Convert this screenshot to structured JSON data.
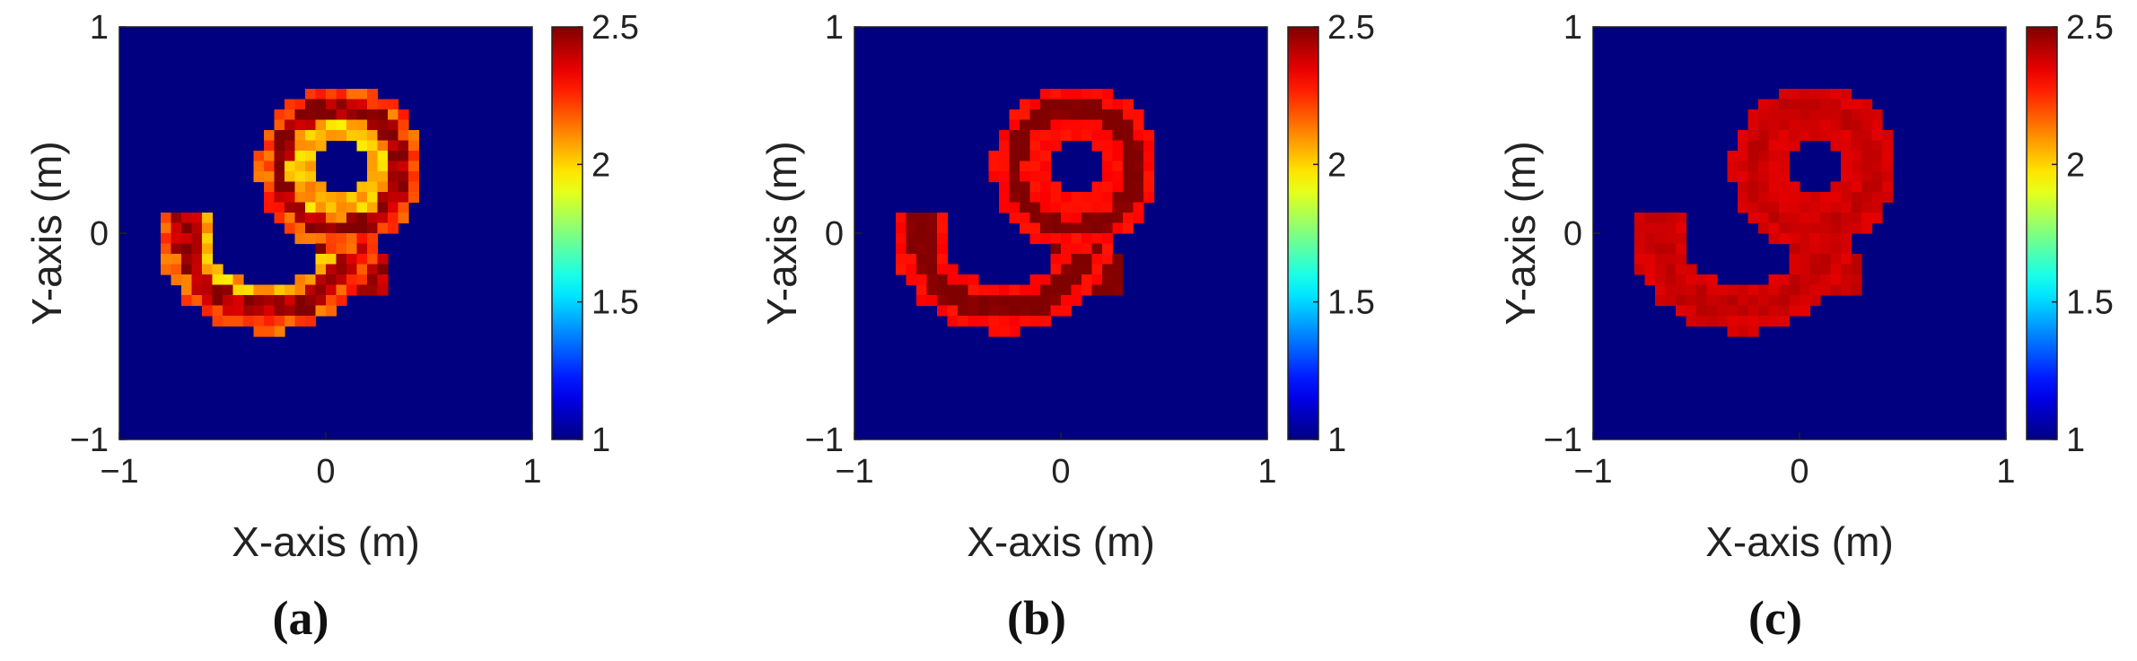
{
  "chart_data": [
    {
      "type": "heatmap",
      "label": "(a)",
      "xlabel": "X-axis (m)",
      "ylabel": "Y-axis (m)",
      "xlim": [
        -1,
        1
      ],
      "ylim": [
        -1,
        1
      ],
      "x_ticks": [
        "−1",
        "0",
        "1"
      ],
      "y_ticks": [
        "−1",
        "0",
        "1"
      ],
      "colorbar": {
        "range": [
          1,
          2.5
        ],
        "colormap": "jet",
        "ticks": [
          "1",
          "1.5",
          "2",
          "2.5"
        ]
      },
      "background_value": 1,
      "grid_size": 40,
      "shape": "digit-9 contour",
      "value_levels": {
        "outer_ring": 2.2,
        "inner_ring": 2.05,
        "body": 2.45
      },
      "max_value": 2.5
    },
    {
      "type": "heatmap",
      "label": "(b)",
      "xlabel": "X-axis (m)",
      "ylabel": "Y-axis (m)",
      "xlim": [
        -1,
        1
      ],
      "ylim": [
        -1,
        1
      ],
      "x_ticks": [
        "−1",
        "0",
        "1"
      ],
      "y_ticks": [
        "−1",
        "0",
        "1"
      ],
      "colorbar": {
        "range": [
          1,
          2.5
        ],
        "colormap": "jet",
        "ticks": [
          "1",
          "1.5",
          "2",
          "2.5"
        ]
      },
      "background_value": 1,
      "grid_size": 40,
      "shape": "digit-9 contour",
      "value_levels": {
        "outer_ring": 2.3,
        "inner_ring": 2.3,
        "body": 2.5
      },
      "max_value": 2.5
    },
    {
      "type": "heatmap",
      "label": "(c)",
      "xlabel": "X-axis (m)",
      "ylabel": "Y-axis (m)",
      "xlim": [
        -1,
        1
      ],
      "ylim": [
        -1,
        1
      ],
      "x_ticks": [
        "−1",
        "0",
        "1"
      ],
      "y_ticks": [
        "−1",
        "0",
        "1"
      ],
      "colorbar": {
        "range": [
          1,
          2.5
        ],
        "colormap": "jet",
        "ticks": [
          "1",
          "1.5",
          "2",
          "2.5"
        ]
      },
      "background_value": 1,
      "grid_size": 40,
      "shape": "digit-9 contour",
      "value_levels": {
        "outer_ring": 2.37,
        "inner_ring": 2.37,
        "body": 2.4
      },
      "max_value": 2.5
    }
  ]
}
